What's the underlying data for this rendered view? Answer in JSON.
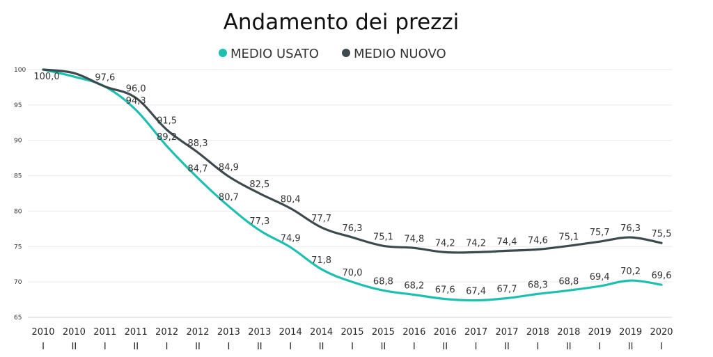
{
  "chart_data": {
    "type": "line",
    "title": "Andamento dei prezzi",
    "xlabel": "",
    "ylabel": "",
    "ylim": [
      65,
      100
    ],
    "yticks": [
      65,
      70,
      75,
      80,
      85,
      90,
      95,
      100
    ],
    "legend_position": "top-center",
    "grid": true,
    "categories": [
      {
        "year": "2010",
        "half": "I"
      },
      {
        "year": "2010",
        "half": "II"
      },
      {
        "year": "2011",
        "half": "I"
      },
      {
        "year": "2011",
        "half": "II"
      },
      {
        "year": "2012",
        "half": "I"
      },
      {
        "year": "2012",
        "half": "II"
      },
      {
        "year": "2013",
        "half": "I"
      },
      {
        "year": "2013",
        "half": "II"
      },
      {
        "year": "2014",
        "half": "I"
      },
      {
        "year": "2014",
        "half": "II"
      },
      {
        "year": "2015",
        "half": "I"
      },
      {
        "year": "2015",
        "half": "II"
      },
      {
        "year": "2016",
        "half": "I"
      },
      {
        "year": "2016",
        "half": "II"
      },
      {
        "year": "2017",
        "half": "I"
      },
      {
        "year": "2017",
        "half": "II"
      },
      {
        "year": "2018",
        "half": "I"
      },
      {
        "year": "2018",
        "half": "II"
      },
      {
        "year": "2019",
        "half": "I"
      },
      {
        "year": "2019",
        "half": "II"
      },
      {
        "year": "2020",
        "half": "I"
      }
    ],
    "series": [
      {
        "name": "MEDIO USATO",
        "color": "#1ebfb0",
        "values": [
          100.0,
          99.0,
          97.6,
          94.3,
          89.2,
          84.7,
          80.7,
          77.3,
          74.9,
          71.8,
          70.0,
          68.8,
          68.2,
          67.6,
          67.4,
          67.7,
          68.3,
          68.8,
          69.4,
          70.2,
          69.6
        ],
        "labels": [
          "100,0",
          null,
          null,
          "94,3",
          "89,2",
          "84,7",
          "80,7",
          "77,3",
          "74,9",
          "71,8",
          "70,0",
          "68,8",
          "68,2",
          "67,6",
          "67,4",
          "67,7",
          "68,3",
          "68,8",
          "69,4",
          "70,2",
          "69,6"
        ]
      },
      {
        "name": "MEDIO NUOVO",
        "color": "#3c4a4e",
        "values": [
          100.0,
          99.5,
          97.6,
          96.0,
          91.5,
          88.3,
          84.9,
          82.5,
          80.4,
          77.7,
          76.3,
          75.1,
          74.8,
          74.2,
          74.2,
          74.4,
          74.6,
          75.1,
          75.7,
          76.3,
          75.5
        ],
        "labels": [
          null,
          null,
          "97,6",
          "96,0",
          "91,5",
          "88,3",
          "84,9",
          "82,5",
          "80,4",
          "77,7",
          "76,3",
          "75,1",
          "74,8",
          "74,2",
          "74,2",
          "74,4",
          "74,6",
          "75,1",
          "75,7",
          "76,3",
          "75,5"
        ]
      }
    ]
  }
}
